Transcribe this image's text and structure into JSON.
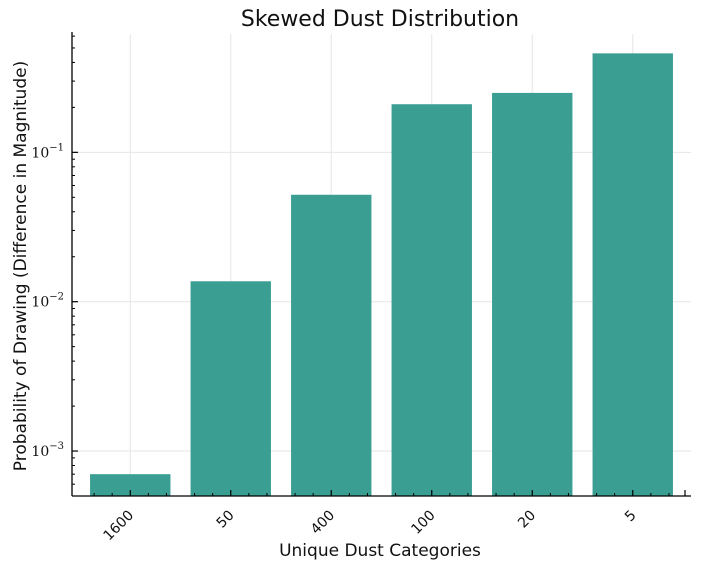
{
  "chart_data": {
    "type": "bar",
    "title": "Skewed Dust Distribution",
    "xlabel": "Unique Dust Categories",
    "ylabel": "Probability of Drawing (Difference in Magnitude)",
    "categories": [
      "1600",
      "50",
      "400",
      "100",
      "20",
      "5"
    ],
    "values": [
      0.0007,
      0.0137,
      0.052,
      0.21,
      0.25,
      0.46
    ],
    "y_scale": "log",
    "ylim": [
      0.0005,
      0.62
    ],
    "y_ticks": [
      {
        "base": "10",
        "exp": "−3"
      },
      {
        "base": "10",
        "exp": "−2"
      },
      {
        "base": "10",
        "exp": "−1"
      }
    ],
    "grid": true,
    "bar_color": "#3a9e93",
    "grid_color": "#e6e6e6",
    "x_tick_rotation_deg": 45
  }
}
